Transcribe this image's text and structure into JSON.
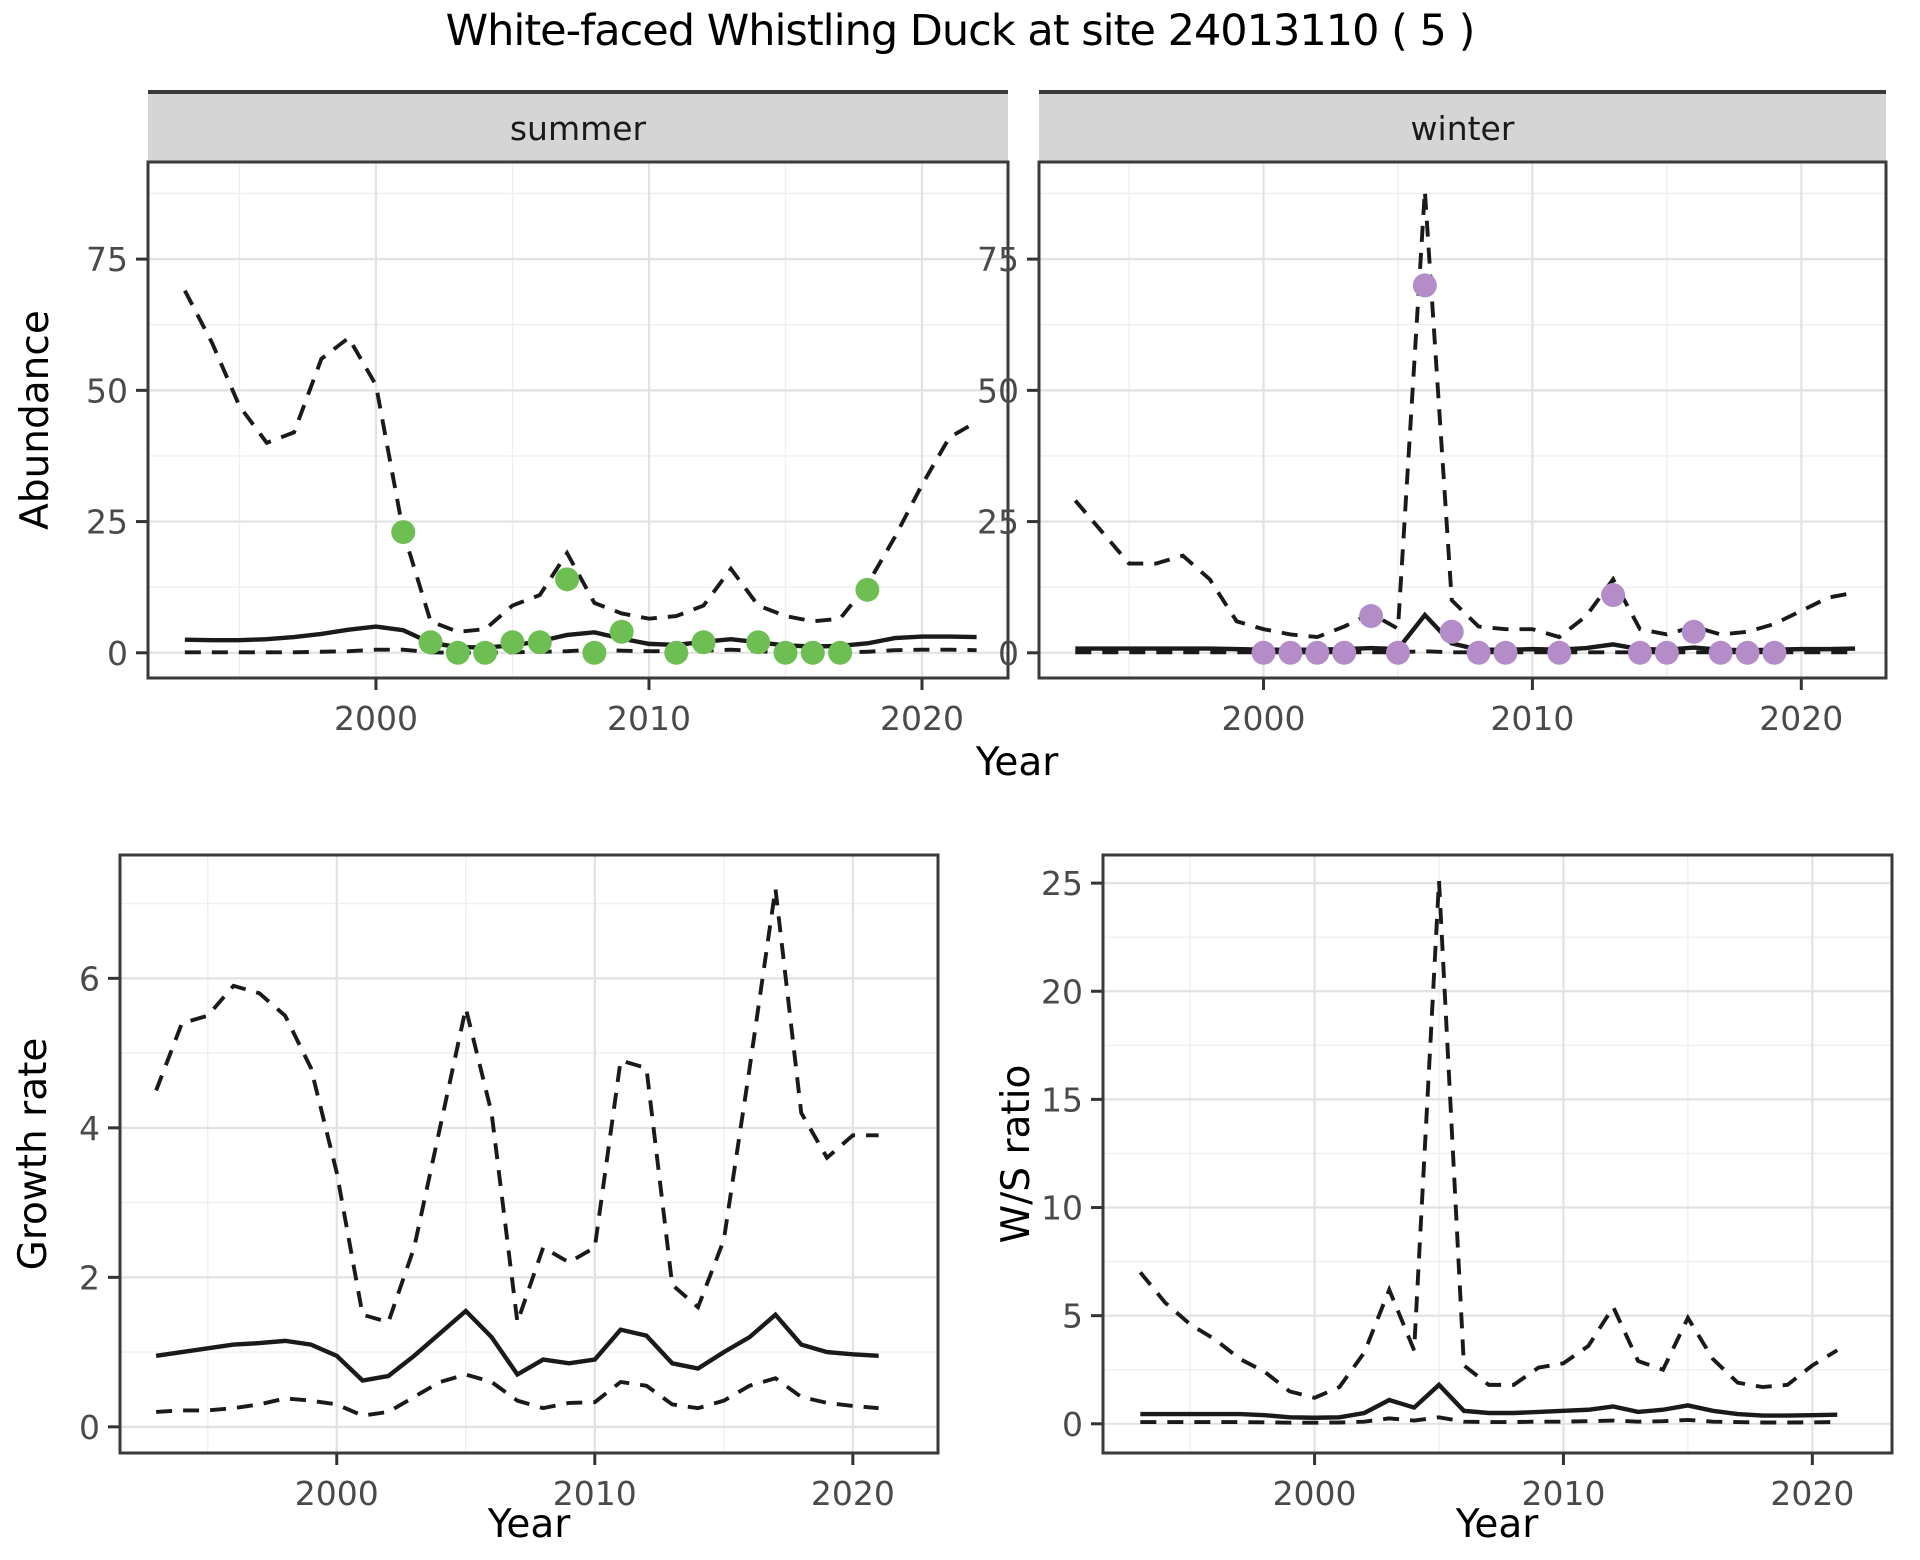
{
  "title": "White-faced Whistling Duck at site 24013110 ( 5 )",
  "facets": [
    "summer",
    "winter"
  ],
  "axis_titles": {
    "top_y": "Abundance",
    "top_x": "Year",
    "bottom_left_y": "Growth rate",
    "bottom_left_x": "Year",
    "bottom_right_y": "W/S ratio",
    "bottom_right_x": "Year"
  },
  "colors": {
    "summer_point": "#6dbe53",
    "winter_point": "#b48cc8",
    "line": "#1a1a1a",
    "strip_bg": "#d5d5d5",
    "panel_border": "#3a3a3a",
    "grid_major": "#e2e2e2",
    "grid_minor": "#efefef",
    "tick_label": "#4a4a4a"
  },
  "chart_data": [
    {
      "id": "abundance-summer",
      "type": "line",
      "facet": "summer",
      "title": "",
      "xlabel": "Year",
      "ylabel": "Abundance",
      "grid": true,
      "legend": "none",
      "xlim": [
        1991.65,
        2023.15
      ],
      "ylim": [
        -4.8,
        93.5
      ],
      "xticks": [
        2000,
        2010,
        2020
      ],
      "yticks": [
        0,
        25,
        50,
        75
      ],
      "xminor": [
        1995,
        2005,
        2015
      ],
      "yminor": [
        12.5,
        37.5,
        62.5,
        87.5
      ],
      "x": [
        1993,
        1994,
        1995,
        1996,
        1997,
        1998,
        1999,
        2000,
        2001,
        2002,
        2003,
        2004,
        2005,
        2006,
        2007,
        2008,
        2009,
        2010,
        2011,
        2012,
        2013,
        2014,
        2015,
        2016,
        2017,
        2018,
        2019,
        2020,
        2021,
        2022
      ],
      "series": [
        {
          "name": "upper_95ci",
          "style": "dashed",
          "values": [
            69,
            59,
            47,
            40,
            42,
            56,
            60,
            51,
            23,
            6,
            4,
            4.5,
            9,
            11,
            19,
            9.5,
            7.5,
            6.5,
            7,
            9,
            16,
            9,
            7,
            6,
            6.5,
            13,
            22,
            32,
            41,
            44
          ]
        },
        {
          "name": "mean",
          "style": "solid",
          "values": [
            2.5,
            2.4,
            2.4,
            2.6,
            3.0,
            3.6,
            4.4,
            5.0,
            4.3,
            1.9,
            1.1,
            1.0,
            1.4,
            2.2,
            3.4,
            3.9,
            2.7,
            1.7,
            1.5,
            2.1,
            2.6,
            2.0,
            1.4,
            1.2,
            1.3,
            1.8,
            2.8,
            3.1,
            3.1,
            3.0
          ]
        },
        {
          "name": "lower_95ci",
          "style": "dashed",
          "values": [
            0.1,
            0.1,
            0.1,
            0.1,
            0.1,
            0.2,
            0.3,
            0.6,
            0.6,
            0.1,
            0,
            0,
            0.1,
            0.2,
            0.3,
            0.6,
            0.4,
            0.3,
            0.3,
            0.4,
            0.6,
            0.3,
            0.1,
            0.1,
            0.1,
            0.2,
            0.5,
            0.6,
            0.6,
            0.5
          ]
        }
      ],
      "points": {
        "name": "observed-counts-summer",
        "color": "#6dbe53",
        "xy": [
          [
            2001,
            23
          ],
          [
            2002,
            2
          ],
          [
            2003,
            0
          ],
          [
            2004,
            0
          ],
          [
            2005,
            2
          ],
          [
            2006,
            2
          ],
          [
            2007,
            14
          ],
          [
            2008,
            0
          ],
          [
            2009,
            4
          ],
          [
            2011,
            0
          ],
          [
            2012,
            2
          ],
          [
            2014,
            2
          ],
          [
            2015,
            0
          ],
          [
            2016,
            0
          ],
          [
            2017,
            0
          ],
          [
            2018,
            12
          ]
        ]
      }
    },
    {
      "id": "abundance-winter",
      "type": "line",
      "facet": "winter",
      "title": "",
      "xlabel": "Year",
      "ylabel": "Abundance",
      "grid": true,
      "legend": "none",
      "xlim": [
        1991.65,
        2023.15
      ],
      "ylim": [
        -4.8,
        93.5
      ],
      "xticks": [
        2000,
        2010,
        2020
      ],
      "yticks": [
        0,
        25,
        50,
        75
      ],
      "xminor": [
        1995,
        2005,
        2015
      ],
      "yminor": [
        12.5,
        37.5,
        62.5,
        87.5
      ],
      "x": [
        1993,
        1994,
        1995,
        1996,
        1997,
        1998,
        1999,
        2000,
        2001,
        2002,
        2003,
        2004,
        2005,
        2006,
        2007,
        2008,
        2009,
        2010,
        2011,
        2012,
        2013,
        2014,
        2015,
        2016,
        2017,
        2018,
        2019,
        2020,
        2021,
        2022
      ],
      "series": [
        {
          "name": "upper_95ci",
          "style": "dashed",
          "values": [
            29,
            23,
            17,
            17,
            18.5,
            14,
            6,
            4.5,
            3.5,
            3,
            5,
            7.5,
            4.6,
            88,
            10,
            5,
            4.5,
            4.5,
            3,
            7,
            14,
            4.5,
            3.5,
            5,
            3.5,
            4,
            5.5,
            8,
            10.5,
            11.5
          ]
        },
        {
          "name": "mean",
          "style": "solid",
          "values": [
            0.8,
            0.8,
            0.8,
            0.8,
            0.8,
            0.8,
            0.7,
            0.6,
            0.6,
            0.6,
            0.7,
            0.9,
            0.7,
            7.2,
            1.8,
            0.6,
            0.6,
            0.7,
            0.6,
            0.9,
            1.6,
            0.7,
            0.6,
            1.0,
            0.6,
            0.5,
            0.6,
            0.7,
            0.7,
            0.8
          ]
        },
        {
          "name": "lower_95ci",
          "style": "dashed",
          "values": [
            0.1,
            0.1,
            0.1,
            0.1,
            0.1,
            0.1,
            0.1,
            0.1,
            0.1,
            0.1,
            0.1,
            0.1,
            0.1,
            0.3,
            0.1,
            0.1,
            0.1,
            0.1,
            0.1,
            0.1,
            0.1,
            0.1,
            0.1,
            0.1,
            0.1,
            0.1,
            0.1,
            0.1,
            0.1,
            0.1
          ]
        }
      ],
      "points": {
        "name": "observed-counts-winter",
        "color": "#b48cc8",
        "xy": [
          [
            2000,
            0
          ],
          [
            2001,
            0
          ],
          [
            2002,
            0
          ],
          [
            2003,
            0
          ],
          [
            2004,
            7
          ],
          [
            2005,
            0
          ],
          [
            2006,
            70
          ],
          [
            2007,
            4
          ],
          [
            2008,
            0
          ],
          [
            2009,
            0
          ],
          [
            2011,
            0
          ],
          [
            2013,
            11
          ],
          [
            2014,
            0
          ],
          [
            2015,
            0
          ],
          [
            2016,
            4
          ],
          [
            2017,
            0
          ],
          [
            2018,
            0
          ],
          [
            2019,
            0
          ]
        ]
      }
    },
    {
      "id": "growth-rate",
      "type": "line",
      "facet": "",
      "title": "",
      "xlabel": "Year",
      "ylabel": "Growth rate",
      "grid": true,
      "legend": "none",
      "xlim": [
        1991.6,
        2023.3
      ],
      "ylim": [
        -0.35,
        7.65
      ],
      "xticks": [
        2000,
        2010,
        2020
      ],
      "yticks": [
        0,
        2,
        4,
        6
      ],
      "xminor": [
        1995,
        2005,
        2015
      ],
      "yminor": [
        1,
        3,
        5,
        7
      ],
      "x": [
        1993,
        1994,
        1995,
        1996,
        1997,
        1998,
        1999,
        2000,
        2001,
        2002,
        2003,
        2004,
        2005,
        2006,
        2007,
        2008,
        2009,
        2010,
        2011,
        2012,
        2013,
        2014,
        2015,
        2016,
        2017,
        2018,
        2019,
        2020,
        2021
      ],
      "series": [
        {
          "name": "upper_95ci",
          "style": "dashed",
          "values": [
            4.5,
            5.4,
            5.5,
            5.9,
            5.8,
            5.5,
            4.8,
            3.4,
            1.5,
            1.4,
            2.4,
            4.0,
            5.6,
            4.2,
            1.4,
            2.4,
            2.2,
            2.4,
            4.9,
            4.8,
            1.9,
            1.6,
            2.5,
            4.8,
            7.2,
            4.2,
            3.6,
            3.9,
            3.9
          ]
        },
        {
          "name": "mean",
          "style": "solid",
          "values": [
            0.95,
            1.0,
            1.05,
            1.1,
            1.12,
            1.15,
            1.1,
            0.95,
            0.62,
            0.68,
            0.95,
            1.25,
            1.55,
            1.2,
            0.7,
            0.9,
            0.85,
            0.9,
            1.3,
            1.22,
            0.85,
            0.78,
            1.0,
            1.2,
            1.5,
            1.1,
            1.0,
            0.97,
            0.95
          ]
        },
        {
          "name": "lower_95ci",
          "style": "dashed",
          "values": [
            0.2,
            0.22,
            0.22,
            0.25,
            0.3,
            0.38,
            0.35,
            0.3,
            0.15,
            0.2,
            0.4,
            0.6,
            0.7,
            0.6,
            0.35,
            0.25,
            0.32,
            0.33,
            0.6,
            0.55,
            0.3,
            0.25,
            0.35,
            0.55,
            0.65,
            0.4,
            0.32,
            0.28,
            0.25
          ]
        }
      ],
      "points": null
    },
    {
      "id": "ws-ratio",
      "type": "line",
      "facet": "",
      "title": "",
      "xlabel": "Year",
      "ylabel": "W/S ratio",
      "grid": true,
      "legend": "none",
      "xlim": [
        1991.5,
        2023.2
      ],
      "ylim": [
        -1.35,
        26.3
      ],
      "xticks": [
        2000,
        2010,
        2020
      ],
      "yticks": [
        0,
        5,
        10,
        15,
        20,
        25
      ],
      "xminor": [
        1995,
        2005,
        2015
      ],
      "yminor": [
        2.5,
        7.5,
        12.5,
        17.5,
        22.5
      ],
      "x": [
        1993,
        1994,
        1995,
        1996,
        1997,
        1998,
        1999,
        2000,
        2001,
        2002,
        2003,
        2004,
        2005,
        2006,
        2007,
        2008,
        2009,
        2010,
        2011,
        2012,
        2013,
        2014,
        2015,
        2016,
        2017,
        2018,
        2019,
        2020,
        2021
      ],
      "series": [
        {
          "name": "upper_95ci",
          "style": "dashed",
          "values": [
            7.0,
            5.6,
            4.6,
            3.9,
            3.0,
            2.4,
            1.5,
            1.2,
            1.7,
            3.3,
            6.2,
            3.4,
            25.1,
            2.7,
            1.8,
            1.8,
            2.6,
            2.8,
            3.6,
            5.4,
            2.9,
            2.5,
            4.9,
            3.0,
            1.9,
            1.7,
            1.8,
            2.7,
            3.4
          ]
        },
        {
          "name": "mean",
          "style": "solid",
          "values": [
            0.45,
            0.45,
            0.45,
            0.45,
            0.45,
            0.4,
            0.3,
            0.28,
            0.3,
            0.5,
            1.1,
            0.75,
            1.8,
            0.6,
            0.5,
            0.5,
            0.55,
            0.6,
            0.65,
            0.8,
            0.55,
            0.65,
            0.85,
            0.6,
            0.45,
            0.38,
            0.38,
            0.4,
            0.42
          ]
        },
        {
          "name": "lower_95ci",
          "style": "dashed",
          "values": [
            0.08,
            0.08,
            0.08,
            0.08,
            0.08,
            0.07,
            0.05,
            0.05,
            0.06,
            0.1,
            0.25,
            0.15,
            0.3,
            0.1,
            0.08,
            0.08,
            0.1,
            0.1,
            0.12,
            0.15,
            0.1,
            0.12,
            0.18,
            0.1,
            0.08,
            0.06,
            0.06,
            0.07,
            0.08
          ]
        }
      ],
      "points": null
    }
  ]
}
